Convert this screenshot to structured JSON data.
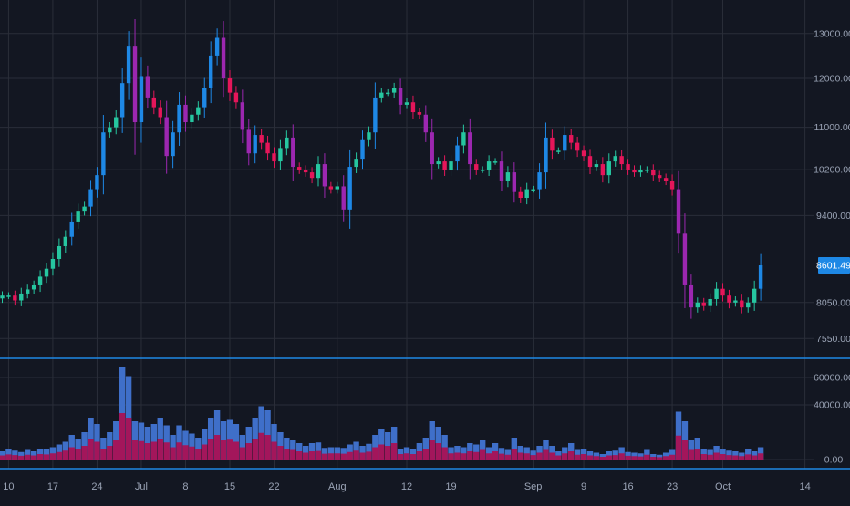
{
  "colors": {
    "background": "#131722",
    "grid": "#2a2e39",
    "separator": "#1e88e5",
    "axis_text": "#9aa3b5",
    "up": "#26c6a0",
    "down": "#e5165a",
    "up_alt": "#1e88e5",
    "down_alt": "#9c27b0",
    "volume_blue": "#3f6fc9",
    "volume_red": "#a3165b",
    "price_label_bg": "#1e88e5"
  },
  "chart_data": {
    "type": "candlestick",
    "price_axis": {
      "scale": "log",
      "range": [
        7300,
        13800
      ],
      "tick_labels": [
        "13000.00",
        "12000.00",
        "11000.00",
        "10200.00",
        "9400.00",
        "8050.00",
        "7550.00"
      ],
      "tick_values": [
        13000,
        12000,
        11000,
        10200,
        9400,
        8050,
        7550
      ]
    },
    "current_price": {
      "value": 8601.49,
      "label": "8601.49"
    },
    "volume_axis": {
      "range": [
        0,
        72000
      ],
      "tick_labels": [
        "60000.00",
        "40000.00",
        "0.00"
      ],
      "tick_values": [
        60000,
        40000,
        0
      ]
    },
    "x_axis": {
      "ticks": [
        {
          "label": "10",
          "index": 1
        },
        {
          "label": "17",
          "index": 8
        },
        {
          "label": "24",
          "index": 15
        },
        {
          "label": "Jul",
          "index": 22
        },
        {
          "label": "8",
          "index": 29
        },
        {
          "label": "15",
          "index": 36
        },
        {
          "label": "22",
          "index": 43
        },
        {
          "label": "Aug",
          "index": 53
        },
        {
          "label": "12",
          "index": 64
        },
        {
          "label": "19",
          "index": 71
        },
        {
          "label": "Sep",
          "index": 84
        },
        {
          "label": "9",
          "index": 92
        },
        {
          "label": "16",
          "index": 99
        },
        {
          "label": "23",
          "index": 106
        },
        {
          "label": "Oct",
          "index": 114
        },
        {
          "label": "14",
          "index": 127
        }
      ]
    },
    "close": [
      8150,
      8150,
      8080,
      8180,
      8240,
      8300,
      8430,
      8550,
      8700,
      8900,
      9050,
      9300,
      9480,
      9550,
      9850,
      10100,
      10900,
      11000,
      11200,
      11900,
      12700,
      11100,
      12050,
      11600,
      11400,
      11200,
      10450,
      10900,
      11450,
      11100,
      11250,
      11400,
      11800,
      12500,
      12900,
      12000,
      11700,
      11500,
      10950,
      10500,
      10850,
      10700,
      10500,
      10350,
      10600,
      10800,
      10250,
      10200,
      10150,
      10050,
      10300,
      9900,
      9850,
      9900,
      9500,
      10250,
      10400,
      10750,
      10900,
      11600,
      11700,
      11700,
      11800,
      11450,
      11500,
      11300,
      11250,
      10900,
      10300,
      10350,
      10200,
      10350,
      10650,
      10900,
      10300,
      10200,
      10200,
      10350,
      10350,
      10000,
      10150,
      9800,
      9700,
      9850,
      9850,
      10150,
      10800,
      10550,
      10550,
      10850,
      10700,
      10550,
      10450,
      10250,
      10300,
      10100,
      10350,
      10450,
      10300,
      10200,
      10150,
      10200,
      10200,
      10100,
      10050,
      10000,
      9850,
      9100,
      8300,
      7980,
      8050,
      8000,
      8100,
      8250,
      8150,
      8050,
      8080,
      7980,
      8050,
      8250,
      8601.49
    ],
    "volume": [
      6000,
      7500,
      6500,
      5500,
      7000,
      6000,
      8000,
      7500,
      9000,
      11000,
      13000,
      18000,
      15000,
      20000,
      30000,
      26000,
      16000,
      20000,
      28000,
      68000,
      61000,
      28000,
      27000,
      24000,
      26000,
      30000,
      25000,
      18000,
      25000,
      21000,
      19000,
      16000,
      22000,
      30000,
      36000,
      28000,
      29000,
      26000,
      18000,
      24000,
      30000,
      39000,
      36000,
      26000,
      20000,
      16000,
      14000,
      12000,
      10000,
      12000,
      12500,
      8500,
      9000,
      9000,
      8500,
      11000,
      13000,
      10000,
      11500,
      18000,
      22000,
      20000,
      24000,
      8000,
      9000,
      8000,
      12000,
      16000,
      28000,
      24000,
      18000,
      9000,
      10000,
      9000,
      12000,
      11000,
      14000,
      9000,
      12000,
      8500,
      7000,
      16000,
      10000,
      9000,
      6500,
      10000,
      14000,
      10000,
      6000,
      9000,
      12000,
      7000,
      8000,
      6000,
      5000,
      4000,
      6000,
      6500,
      9000,
      5500,
      5000,
      4500,
      7000,
      4000,
      3500,
      5000,
      7000,
      35000,
      28000,
      14000,
      16000,
      8000,
      7000,
      10000,
      8000,
      6500,
      6000,
      5000,
      7500,
      6000,
      9000
    ]
  }
}
